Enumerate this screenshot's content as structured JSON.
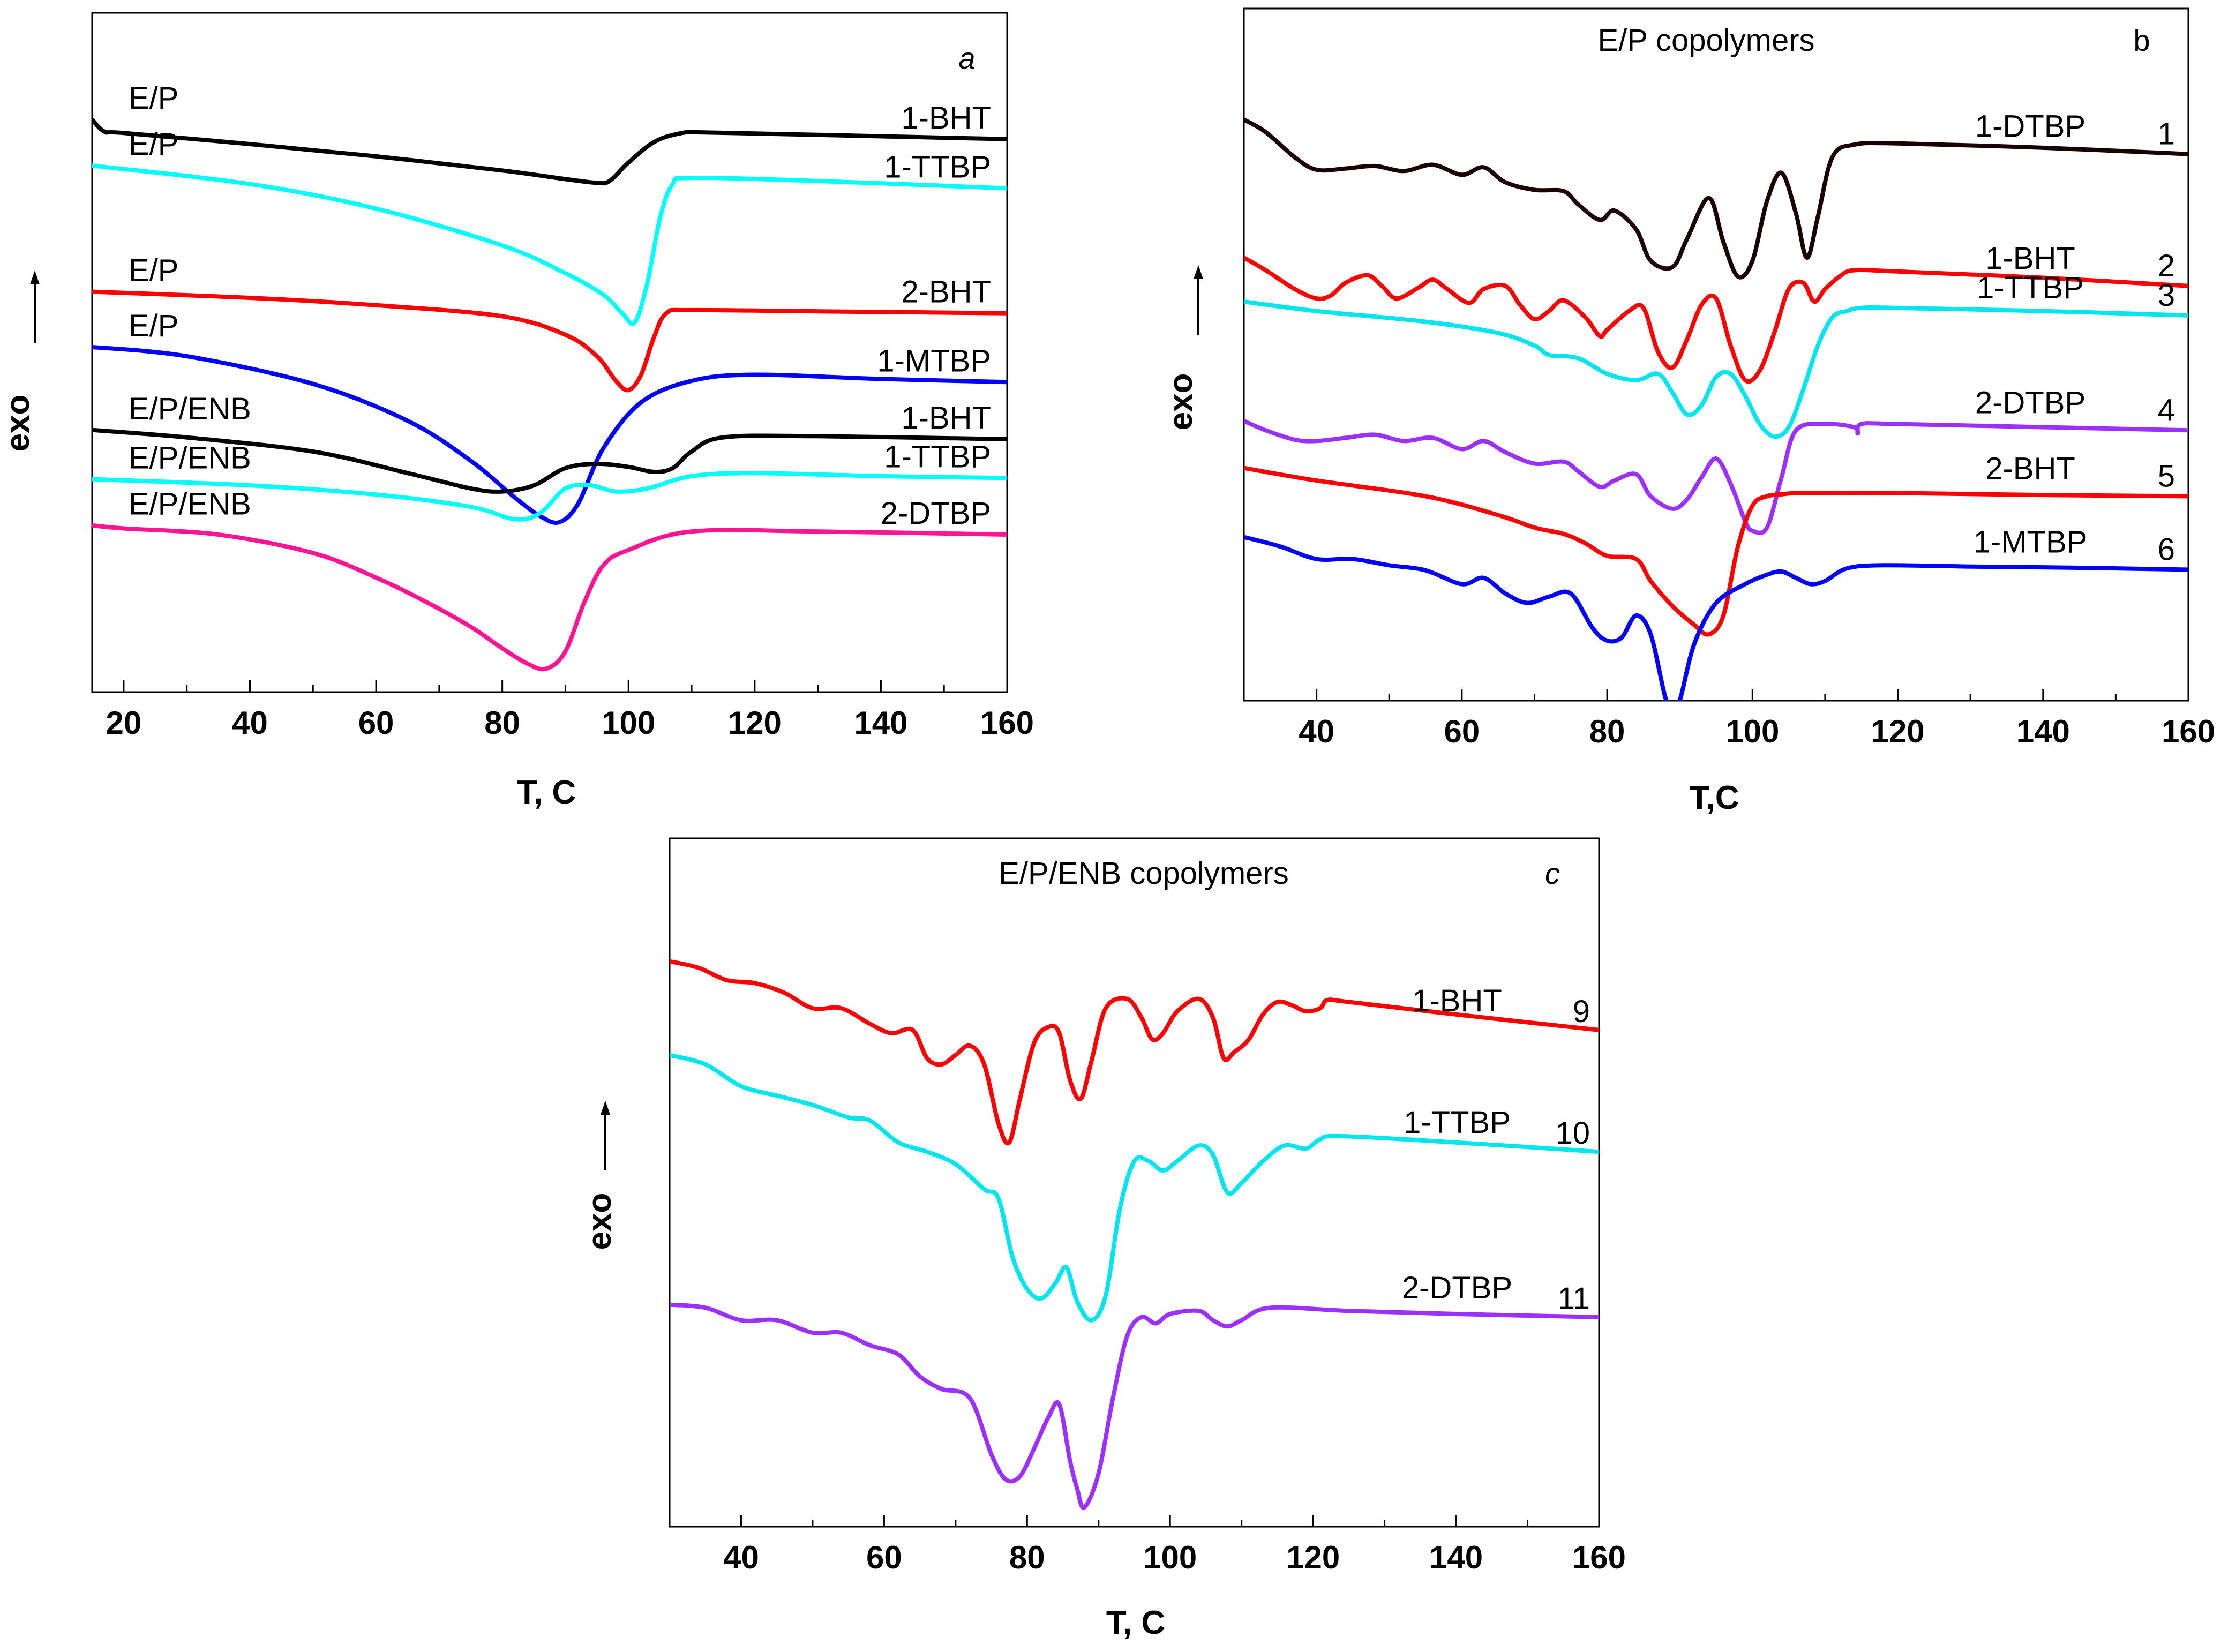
{
  "chart_data": [
    {
      "panel": "a",
      "type": "line",
      "title": "",
      "panel_letter": "a",
      "xlabel": "T, C",
      "ylabel": "exo",
      "xlim": [
        15,
        160
      ],
      "xticks": [
        20,
        40,
        60,
        80,
        100,
        120,
        140,
        160
      ],
      "ylim": [
        0,
        100
      ],
      "y_ticks_shown": false,
      "series": [
        {
          "name": "E/P 1-BHT",
          "left_label": "E/P",
          "right_label": "1-BHT",
          "color": "#000000",
          "x": [
            15,
            17,
            20,
            40,
            60,
            80,
            90,
            95,
            97,
            100,
            104,
            108,
            112,
            130,
            160
          ],
          "y": [
            90.5,
            88.5,
            88.3,
            86.5,
            84.5,
            82.2,
            80.8,
            80.2,
            80.5,
            83.5,
            86.8,
            88.2,
            88.4,
            88.0,
            87.3
          ]
        },
        {
          "name": "E/P 1-TTBP",
          "left_label": "E/P",
          "right_label": "1-TTBP",
          "color": "#00FFFF",
          "x": [
            15,
            40,
            60,
            80,
            90,
            96,
            99,
            101,
            103,
            105,
            107,
            110,
            130,
            160
          ],
          "y": [
            83.0,
            80.0,
            76.0,
            70.0,
            65.5,
            62.0,
            59.0,
            57.5,
            64.0,
            74.5,
            80.0,
            81.0,
            80.5,
            79.3
          ]
        },
        {
          "name": "E/P 2-BHT",
          "left_label": "E/P",
          "right_label": "2-BHT",
          "color": "#FF0000",
          "x": [
            15,
            40,
            60,
            80,
            90,
            95,
            98,
            100,
            102,
            104,
            106,
            110,
            130,
            160
          ],
          "y": [
            62.5,
            61.5,
            60.3,
            58.5,
            55.5,
            52.0,
            48.0,
            46.5,
            49.0,
            55.0,
            59.0,
            59.5,
            59.3,
            59.0
          ]
        },
        {
          "name": "E/P 1-MTBP",
          "left_label": "E/P",
          "right_label": "1-MTBP",
          "color": "#0000FF",
          "x": [
            15,
            30,
            50,
            65,
            75,
            82,
            86,
            89,
            92,
            96,
            102,
            110,
            120,
            140,
            160
          ],
          "y": [
            53.5,
            52.0,
            47.5,
            41.5,
            35.0,
            29.0,
            26.0,
            25.0,
            28.0,
            37.0,
            44.5,
            48.0,
            49.0,
            48.3,
            47.8
          ]
        },
        {
          "name": "E/P/ENB 1-BHT",
          "left_label": "E/P/ENB",
          "right_label": "1-BHT",
          "color": "#000000",
          "x": [
            15,
            30,
            50,
            65,
            75,
            80,
            85,
            90,
            95,
            100,
            104,
            107,
            110,
            115,
            130,
            160
          ],
          "y": [
            40.0,
            38.8,
            36.5,
            33.0,
            30.5,
            30.0,
            31.0,
            33.8,
            34.5,
            34.0,
            33.2,
            33.8,
            36.5,
            38.8,
            39.0,
            38.5
          ]
        },
        {
          "name": "E/P/ENB 1-TTBP",
          "left_label": "E/P/ENB",
          "right_label": "1-TTBP",
          "color": "#00FFFF",
          "x": [
            15,
            40,
            60,
            75,
            82,
            86,
            90,
            94,
            98,
            103,
            110,
            120,
            140,
            160
          ],
          "y": [
            32.0,
            31.0,
            29.5,
            27.5,
            25.5,
            26.5,
            30.5,
            31.0,
            30.0,
            30.5,
            32.5,
            33.0,
            32.5,
            32.2
          ]
        },
        {
          "name": "E/P/ENB 2-DTBP",
          "left_label": "E/P/ENB",
          "right_label": "2-DTBP",
          "color": "#FF1493",
          "x": [
            15,
            20,
            35,
            50,
            60,
            68,
            75,
            80,
            84,
            87,
            90,
            93,
            96,
            100,
            110,
            130,
            160
          ],
          "y": [
            24.5,
            24.0,
            23.0,
            20.0,
            16.0,
            12.0,
            8.0,
            4.5,
            2.0,
            1.2,
            4.0,
            12.0,
            18.0,
            20.5,
            23.5,
            23.5,
            23.0
          ]
        }
      ]
    },
    {
      "panel": "b",
      "type": "line",
      "title": "E/P copolymers",
      "panel_letter": "b",
      "xlabel": "T,C",
      "ylabel": "exo",
      "xlim": [
        30,
        160
      ],
      "xticks": [
        40,
        60,
        80,
        100,
        120,
        140,
        160
      ],
      "ylim": [
        0,
        100
      ],
      "y_ticks_shown": false,
      "series": [
        {
          "name": "1-DTBP",
          "label": "1-DTBP",
          "number": "1",
          "color": "#1A0000",
          "x": [
            30,
            33,
            37,
            40,
            44,
            48,
            52,
            56,
            60,
            63,
            66,
            70,
            74,
            76,
            79,
            81,
            84,
            86,
            89,
            91,
            94,
            96,
            98,
            100,
            102,
            104,
            106,
            107.5,
            109,
            111,
            114,
            120,
            140,
            160
          ],
          "y": [
            90.0,
            88.0,
            84.0,
            82.0,
            82.2,
            82.6,
            81.8,
            82.8,
            81.2,
            82.4,
            80.0,
            78.8,
            78.6,
            76.5,
            74.0,
            75.5,
            72.5,
            67.5,
            66.5,
            71.0,
            77.5,
            70.5,
            65.0,
            67.5,
            77.0,
            81.5,
            75.0,
            68.0,
            74.5,
            84.0,
            86.0,
            86.2,
            85.5,
            84.5
          ]
        },
        {
          "name": "1-BHT",
          "label": "1-BHT",
          "number": "2",
          "color": "#FF0000",
          "x": [
            30,
            33,
            37,
            40,
            42,
            44,
            47,
            49,
            51,
            54,
            56,
            58,
            61,
            63,
            66,
            68,
            70,
            72,
            74,
            77,
            79,
            80,
            83,
            85,
            87,
            89,
            91,
            93,
            95,
            97,
            99,
            101,
            103,
            105,
            107,
            108.5,
            110,
            112,
            114,
            120,
            140,
            160
          ],
          "y": [
            68.0,
            66.0,
            63.0,
            61.5,
            62.0,
            64.0,
            65.2,
            63.5,
            61.5,
            63.2,
            64.5,
            63.0,
            60.8,
            63.0,
            63.5,
            60.5,
            58.2,
            59.5,
            61.2,
            58.5,
            55.5,
            56.5,
            59.5,
            60.0,
            53.0,
            50.5,
            55.0,
            60.5,
            61.5,
            54.0,
            48.5,
            50.0,
            56.0,
            63.0,
            64.0,
            61.0,
            63.0,
            65.0,
            66.0,
            65.8,
            64.8,
            63.5
          ]
        },
        {
          "name": "1-TTBP",
          "label": "1-TTBP",
          "number": "3",
          "color": "#00E5EE",
          "x": [
            30,
            40,
            55,
            65,
            70,
            72,
            76,
            80,
            84,
            87,
            89,
            91,
            93,
            95,
            97,
            99,
            101,
            103,
            105,
            107,
            109,
            111,
            113,
            115,
            120,
            140,
            160
          ],
          "y": [
            61.0,
            59.5,
            57.8,
            56.0,
            54.0,
            52.5,
            52.0,
            49.5,
            48.5,
            49.5,
            46.5,
            43.0,
            44.5,
            49.0,
            49.5,
            46.0,
            41.5,
            39.5,
            41.0,
            47.0,
            54.0,
            58.5,
            59.5,
            60.0,
            60.0,
            59.5,
            58.8
          ]
        },
        {
          "name": "2-DTBP",
          "label": "2-DTBP",
          "number": "4",
          "color": "#9B30FF",
          "x": [
            30,
            33,
            37,
            40,
            44,
            48,
            52,
            56,
            60,
            63,
            66,
            70,
            74,
            76,
            79,
            81,
            84,
            86,
            89,
            91,
            93,
            95,
            97,
            99,
            100,
            102,
            104,
            106,
            110,
            114,
            114.5,
            115,
            120,
            140,
            160
          ],
          "y": [
            42.0,
            40.5,
            39.0,
            38.8,
            39.3,
            39.8,
            38.8,
            39.3,
            37.5,
            38.8,
            37.0,
            35.2,
            35.5,
            34.0,
            31.5,
            32.5,
            33.5,
            30.0,
            28.0,
            29.5,
            33.0,
            36.0,
            32.0,
            26.0,
            24.5,
            25.0,
            33.0,
            40.5,
            41.5,
            41.0,
            40.0,
            41.5,
            41.5,
            41.0,
            40.5
          ]
        },
        {
          "name": "2-BHT",
          "label": "2-BHT",
          "number": "5",
          "color": "#FF0000",
          "x": [
            30,
            40,
            55,
            65,
            70,
            74,
            77,
            80,
            84,
            86,
            89,
            92,
            94,
            96,
            98,
            100,
            102,
            104,
            106,
            110,
            120,
            140,
            160
          ],
          "y": [
            34.5,
            32.5,
            30.0,
            27.0,
            25.0,
            24.0,
            22.5,
            20.5,
            20.0,
            16.5,
            12.5,
            9.5,
            8.0,
            11.0,
            22.0,
            28.5,
            30.0,
            30.3,
            30.5,
            30.5,
            30.5,
            30.2,
            30.0
          ]
        },
        {
          "name": "1-MTBP",
          "label": "1-MTBP",
          "number": "6",
          "color": "#0000FF",
          "x": [
            30,
            35,
            40,
            45,
            50,
            55,
            60,
            63,
            66,
            69,
            72,
            75,
            78,
            80,
            82,
            84,
            86,
            88,
            89,
            90,
            92,
            95,
            99,
            102,
            104,
            106,
            108,
            110,
            113,
            118,
            130,
            145,
            160
          ],
          "y": [
            23.5,
            22.0,
            20.0,
            20.0,
            19.0,
            18.2,
            16.0,
            17.0,
            14.5,
            13.0,
            14.0,
            14.5,
            9.0,
            7.0,
            7.5,
            11.0,
            8.0,
            -2.0,
            -3.5,
            -2.5,
            6.5,
            13.0,
            16.0,
            17.5,
            18.0,
            17.0,
            16.0,
            16.5,
            18.5,
            19.0,
            18.8,
            18.6,
            18.3
          ]
        }
      ]
    },
    {
      "panel": "c",
      "type": "line",
      "title": "E/P/ENB copolymers",
      "panel_letter": "c",
      "xlabel": "T, C",
      "ylabel": "exo",
      "xlim": [
        30,
        160
      ],
      "xticks": [
        40,
        60,
        80,
        100,
        120,
        140,
        160
      ],
      "ylim": [
        0,
        100
      ],
      "y_ticks_shown": false,
      "series": [
        {
          "name": "1-BHT",
          "label": "1-BHT",
          "number": "9",
          "color": "#FF0000",
          "x": [
            30,
            34,
            38,
            42,
            46,
            50,
            54,
            58,
            61,
            64,
            66,
            68,
            70,
            72,
            74,
            76,
            77.5,
            79,
            81,
            83,
            84.5,
            86,
            87.5,
            89,
            91,
            94,
            96,
            97.5,
            99,
            101,
            104,
            106,
            107.5,
            109,
            111,
            113,
            115,
            117,
            119,
            121,
            122,
            125,
            140,
            160
          ],
          "y": [
            88.0,
            87.0,
            85.0,
            84.5,
            83.0,
            80.5,
            80.5,
            78.0,
            76.5,
            77.0,
            72.5,
            71.5,
            73.0,
            74.5,
            71.5,
            62.0,
            59.0,
            66.0,
            75.0,
            77.5,
            76.5,
            69.0,
            66.0,
            72.0,
            80.5,
            82.0,
            79.0,
            75.5,
            76.5,
            80.0,
            82.0,
            79.0,
            72.5,
            73.5,
            75.5,
            79.5,
            81.5,
            81.0,
            80.0,
            80.5,
            81.8,
            81.5,
            79.5,
            77.0
          ]
        },
        {
          "name": "1-TTBP",
          "label": "1-TTBP",
          "number": "10",
          "color": "#00E5EE",
          "x": [
            30,
            35,
            40,
            45,
            50,
            55,
            58,
            62,
            66,
            70,
            74,
            76,
            78,
            80,
            82,
            84,
            85.5,
            87,
            89,
            91,
            93,
            95,
            97,
            99,
            101,
            104,
            106,
            108,
            110,
            113,
            116,
            119,
            121,
            124,
            140,
            160
          ],
          "y": [
            73.0,
            71.5,
            68.0,
            66.5,
            65.0,
            63.0,
            62.5,
            59.0,
            57.5,
            55.5,
            51.5,
            50.0,
            40.5,
            35.5,
            34.0,
            36.5,
            39.0,
            33.5,
            30.5,
            34.5,
            48.5,
            56.0,
            56.0,
            54.5,
            56.0,
            58.5,
            57.0,
            51.0,
            52.5,
            56.0,
            58.5,
            58.0,
            59.5,
            60.0,
            59.0,
            57.5
          ]
        },
        {
          "name": "2-DTBP",
          "label": "2-DTBP",
          "number": "11",
          "color": "#9B30FF",
          "x": [
            30,
            35,
            40,
            45,
            50,
            54,
            58,
            62,
            65,
            68,
            72,
            75,
            77,
            79,
            81,
            83,
            84.5,
            86,
            87,
            88,
            90,
            92,
            94,
            96,
            98,
            100,
            104,
            106,
            108,
            110,
            114,
            125,
            140,
            160
          ],
          "y": [
            33.0,
            32.5,
            30.5,
            30.5,
            28.5,
            28.5,
            26.5,
            25.0,
            21.5,
            19.5,
            18.0,
            9.0,
            5.0,
            5.5,
            10.0,
            15.0,
            17.0,
            8.0,
            3.5,
            0.5,
            6.0,
            18.0,
            28.0,
            31.0,
            30.0,
            31.5,
            32.0,
            30.5,
            29.5,
            30.5,
            32.5,
            32.0,
            31.5,
            31.0
          ]
        }
      ]
    }
  ]
}
